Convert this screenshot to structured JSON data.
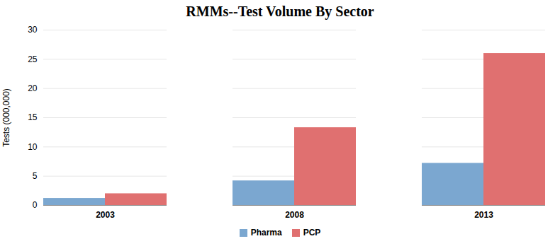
{
  "chart_data": {
    "type": "bar",
    "title": "RMMs--Test Volume By Sector",
    "ylabel": "Tests (000,000)",
    "categories": [
      "2003",
      "2008",
      "2013"
    ],
    "series": [
      {
        "name": "Pharma",
        "color": "#7BA7D0",
        "values": [
          1.2,
          4.2,
          7.2
        ]
      },
      {
        "name": "PCP",
        "color": "#E07070",
        "values": [
          2.0,
          13.3,
          26.0
        ]
      }
    ],
    "ylim": [
      0,
      30
    ],
    "yticks": [
      0,
      5,
      10,
      15,
      20,
      25,
      30
    ],
    "grid": true,
    "legend": "bottom"
  }
}
